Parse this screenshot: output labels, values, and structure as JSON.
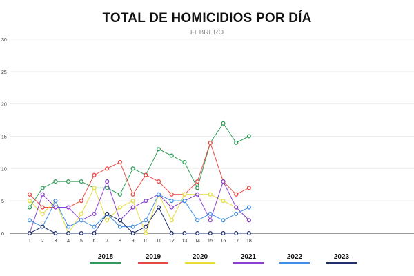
{
  "chart_data": {
    "type": "line",
    "title": "TOTAL DE HOMICIDIOS POR DÍA",
    "subtitle": "FEBRERO",
    "x": [
      1,
      2,
      3,
      4,
      5,
      6,
      7,
      8,
      9,
      10,
      11,
      12,
      13,
      14,
      15,
      16,
      17,
      18
    ],
    "x_ticks": [
      "1",
      "2",
      "3",
      "4",
      "5",
      "6",
      "7",
      "8",
      "9",
      "10",
      "11",
      "12",
      "13",
      "14",
      "15",
      "16",
      "17",
      "18"
    ],
    "y_ticks": [
      "0",
      "5",
      "10",
      "15",
      "20",
      "25",
      "30"
    ],
    "ylim": [
      0,
      30
    ],
    "grid": true,
    "legend_position": "bottom",
    "series": [
      {
        "name": "2018",
        "color": "#2e9b57",
        "values": [
          4,
          7,
          8,
          8,
          8,
          7,
          7,
          6,
          10,
          9,
          13,
          12,
          11,
          7,
          14,
          17,
          14,
          15
        ]
      },
      {
        "name": "2019",
        "color": "#e8473f",
        "values": [
          6,
          4,
          4,
          4,
          5,
          9,
          10,
          11,
          6,
          9,
          8,
          6,
          6,
          8,
          14,
          8,
          6,
          7
        ]
      },
      {
        "name": "2020",
        "color": "#e6dc3a",
        "values": [
          5,
          3,
          5,
          0,
          3,
          7,
          2,
          4,
          5,
          0,
          6,
          2,
          6,
          6,
          6,
          5,
          4,
          2
        ]
      },
      {
        "name": "2021",
        "color": "#8a3fd1",
        "values": [
          0,
          6,
          4,
          4,
          2,
          3,
          8,
          2,
          4,
          5,
          6,
          4,
          5,
          6,
          2,
          8,
          4,
          2
        ]
      },
      {
        "name": "2022",
        "color": "#3e8ee8",
        "values": [
          2,
          1,
          5,
          1,
          2,
          1,
          3,
          1,
          1,
          2,
          6,
          5,
          5,
          2,
          3,
          2,
          3,
          4
        ]
      },
      {
        "name": "2023",
        "color": "#1e2f6e",
        "values": [
          0,
          1,
          0,
          0,
          0,
          0,
          3,
          2,
          0,
          1,
          4,
          0,
          0,
          0,
          0,
          0,
          0,
          0
        ]
      }
    ]
  }
}
